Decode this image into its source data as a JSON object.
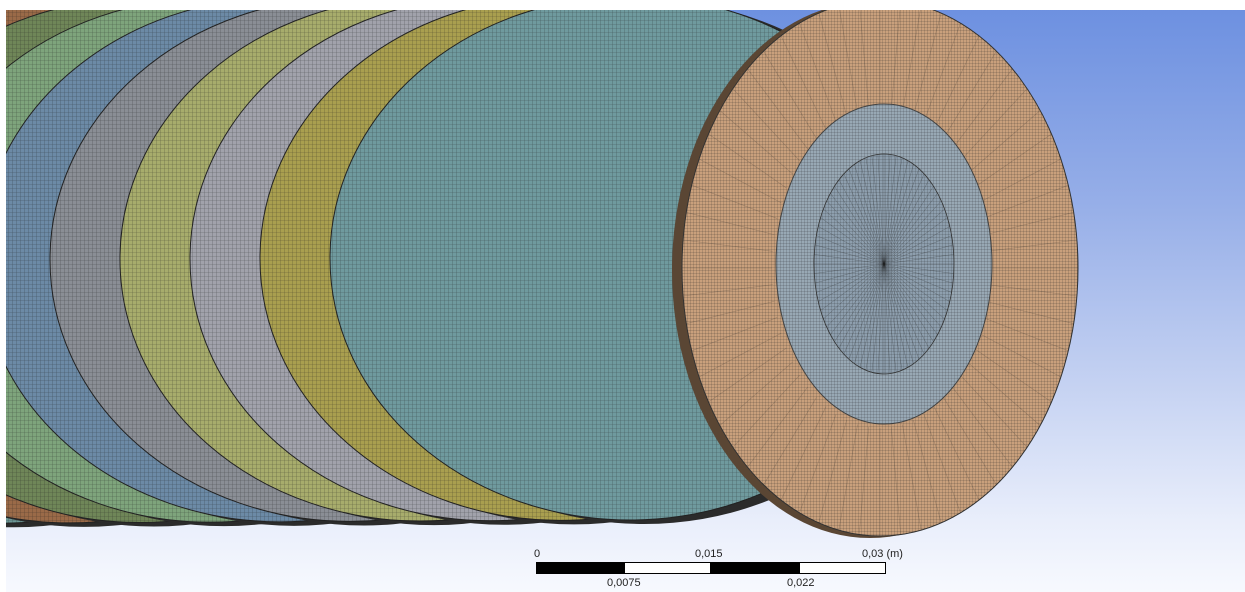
{
  "viewport": {
    "background_top": "#6b8fe0",
    "background_bottom": "#f7f9fe"
  },
  "mesh": {
    "disc_colors": [
      "#8a8e9a",
      "#a79b55",
      "#6e9896",
      "#9a6a48",
      "#6f8658",
      "#7ea47c",
      "#6c8aa6",
      "#8a8e95",
      "#a7ac6c",
      "#a1a2ab",
      "#a99f4f",
      "#6f9a9e"
    ],
    "front_face_color": "#c9a07c",
    "inner_ring_color": "#98a8b4",
    "mesh_line_color": "#1a1a1a"
  },
  "scale_bar": {
    "top_labels": [
      "0",
      "0,015",
      "0,03 (m)"
    ],
    "bottom_labels": [
      "0,0075",
      "0,022"
    ]
  }
}
